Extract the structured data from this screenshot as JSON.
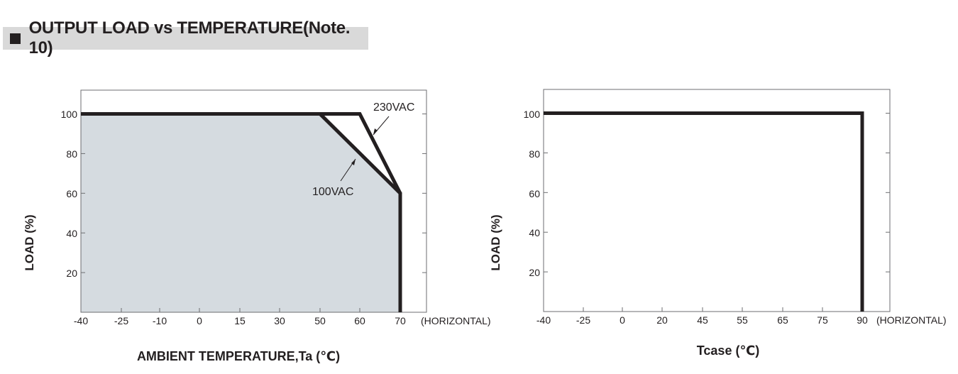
{
  "header": {
    "title": "OUTPUT LOAD vs TEMPERATURE(Note. 10)"
  },
  "colors": {
    "curve": "#231f20",
    "fill": "#d5dbe0",
    "frame": "#6d6e71"
  },
  "chart_data": [
    {
      "type": "line",
      "xlabel": "AMBIENT TEMPERATURE,Ta (℃)",
      "ylabel": "LOAD (%)",
      "x_categories": [
        "-40",
        "-25",
        "-10",
        "0",
        "15",
        "30",
        "50",
        "60",
        "70"
      ],
      "x_suffix": "(HORIZONTAL)",
      "y_ticks": [
        "20",
        "40",
        "60",
        "80",
        "100"
      ],
      "ylim": [
        0,
        112
      ],
      "series": [
        {
          "name": "230VAC",
          "points": [
            [
              "-40",
              100
            ],
            [
              "60",
              100
            ],
            [
              "70",
              60
            ],
            [
              "70",
              0
            ]
          ]
        },
        {
          "name": "100VAC",
          "points": [
            [
              "-40",
              100
            ],
            [
              "50",
              100
            ],
            [
              "70",
              60
            ],
            [
              "70",
              0
            ]
          ]
        }
      ],
      "shaded_area": "100VAC"
    },
    {
      "type": "line",
      "xlabel": "Tcase (℃)",
      "ylabel": "LOAD (%)",
      "x_categories": [
        "-40",
        "-25",
        "0",
        "20",
        "45",
        "55",
        "65",
        "75",
        "90"
      ],
      "x_suffix": "(HORIZONTAL)",
      "y_ticks": [
        "20",
        "40",
        "60",
        "80",
        "100"
      ],
      "ylim": [
        0,
        112
      ],
      "series": [
        {
          "points": [
            [
              "-40",
              100
            ],
            [
              "90",
              100
            ],
            [
              "90",
              0
            ]
          ]
        }
      ]
    }
  ]
}
